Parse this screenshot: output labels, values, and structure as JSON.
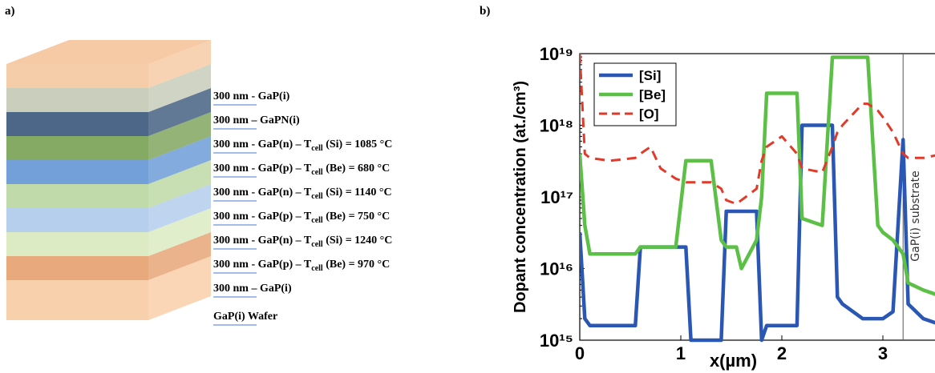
{
  "diagram": {
    "label": "a)",
    "layers": [
      {
        "pre": "300 nm - GaP(i)",
        "color": "#f4c49a"
      },
      {
        "pre": "300 nm – GaPN(i)",
        "color": "#bfc6b2"
      },
      {
        "pre": "300 nm - GaP(n) – T",
        "sub": "cell",
        "post": " (Si) = 1085 °C",
        "color": "#2d4c72"
      },
      {
        "pre": "300 nm -  GaP(p) – T",
        "sub": "cell",
        "post": " (Be) = 680 °C",
        "color": "#6f9b48"
      },
      {
        "pre": "300 nm - GaP(n) – T",
        "sub": "cell",
        "post": " (Si) = 1140 °C",
        "color": "#5a8fd2"
      },
      {
        "pre": "300 nm - GaP(p) – T",
        "sub": "cell",
        "post": " (Be) = 750 °C",
        "color": "#b5d39a"
      },
      {
        "pre": "300 nm - GaP(n) – T",
        "sub": "cell",
        "post": " (Si) = 1240 °C",
        "color": "#a9c7ea"
      },
      {
        "pre": "300 nm - GaP(p) – T",
        "sub": "cell",
        "post": " (Be) = 970 °C",
        "color": "#d7e8ba"
      },
      {
        "pre": "300 nm – GaP(i)",
        "color": "#e49a66"
      },
      {
        "pre": "GaP(i) Wafer",
        "color": "#f8c89e"
      }
    ]
  },
  "chart_data": {
    "type": "line",
    "panel_label": "b)",
    "x_label": "x(µm)",
    "y_label": "Dopant concentration (at./cm³)",
    "x": [
      0,
      0.05,
      0.1,
      0.3,
      0.55,
      0.6,
      0.7,
      0.8,
      0.95,
      1.05,
      1.1,
      1.3,
      1.4,
      1.45,
      1.55,
      1.6,
      1.75,
      1.8,
      1.85,
      2.0,
      2.15,
      2.2,
      2.4,
      2.5,
      2.55,
      2.6,
      2.8,
      2.85,
      2.95,
      3.0,
      3.1,
      3.2,
      3.25,
      3.4,
      3.6
    ],
    "series": [
      {
        "name": "[Si]",
        "color": "#2a56b4",
        "dashed": false,
        "values": [
          3.2e+16,
          2000000000000000.0,
          1600000000000000.0,
          1600000000000000.0,
          1600000000000000.0,
          2e+16,
          2e+16,
          2e+16,
          2e+16,
          2e+16,
          1000000000000000.0,
          1000000000000000.0,
          1000000000000000.0,
          6.3e+16,
          6.3e+16,
          6.3e+16,
          6.3e+16,
          1000000000000000.0,
          1600000000000000.0,
          1600000000000000.0,
          1600000000000000.0,
          1e+18,
          1e+18,
          1e+18,
          4000000000000000.0,
          3200000000000000.0,
          2000000000000000.0,
          2000000000000000.0,
          2000000000000000.0,
          2000000000000000.0,
          2500000000000000.0,
          6.3e+17,
          3200000000000000.0,
          2000000000000000.0,
          1600000000000000.0
        ]
      },
      {
        "name": "[Be]",
        "color": "#5cc046",
        "dashed": false,
        "values": [
          4e+17,
          4e+16,
          1.6e+16,
          1.6e+16,
          1.6e+16,
          2e+16,
          2e+16,
          2e+16,
          2e+16,
          3.2e+17,
          3.2e+17,
          3.2e+17,
          2.5e+16,
          2e+16,
          2e+16,
          1e+16,
          2.5e+16,
          1e+17,
          2.8e+18,
          2.8e+18,
          2.8e+18,
          5e+16,
          4e+16,
          8.9e+18,
          8.9e+18,
          8.9e+18,
          8.9e+18,
          8.9e+18,
          4e+16,
          3.2e+16,
          2.5e+16,
          1.6e+16,
          6300000000000000.0,
          5000000000000000.0,
          4000000000000000.0
        ]
      },
      {
        "name": "[O]",
        "color": "#e23a2a",
        "dashed": true,
        "values": [
          1e+19,
          4e+17,
          3.5e+17,
          3.2e+17,
          3.5e+17,
          4e+17,
          5e+17,
          2.5e+17,
          1.8e+17,
          1.6e+17,
          1.6e+17,
          1.6e+17,
          1.3e+17,
          9e+16,
          8e+16,
          9e+16,
          1.3e+17,
          3.2e+17,
          5e+17,
          7e+17,
          4e+17,
          2.5e+17,
          2.2e+17,
          5e+17,
          8e+17,
          1e+18,
          2e+18,
          2e+18,
          1.6e+18,
          1.3e+18,
          8e+17,
          4e+17,
          3.5e+17,
          3.5e+17,
          4e+17
        ]
      }
    ],
    "xlim": [
      0,
      3.6
    ],
    "xticks": [
      0,
      1,
      2,
      3
    ],
    "ylim": [
      1000000000000000.0,
      1e+19
    ],
    "log_y": true,
    "yticks": [
      {
        "value": 1000000000000000.0,
        "label": "10¹⁵"
      },
      {
        "value": 1e+16,
        "label": "10¹⁶"
      },
      {
        "value": 1e+17,
        "label": "10¹⁷"
      },
      {
        "value": 1e+18,
        "label": "10¹⁸"
      },
      {
        "value": 1e+19,
        "label": "10¹⁹"
      }
    ],
    "legend": "upper left",
    "annotation": {
      "text": "GaP(i) substrate",
      "x": 3.2
    }
  }
}
